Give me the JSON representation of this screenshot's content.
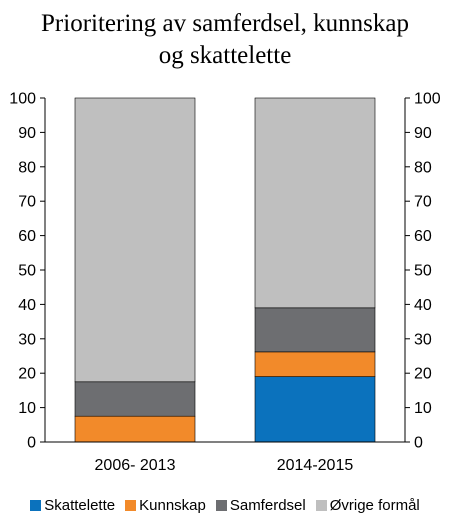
{
  "chart_data": {
    "type": "bar",
    "stacked": true,
    "title_lines": [
      "Prioritering av samferdsel, kunnskap",
      "og skattelette"
    ],
    "categories": [
      "2006- 2013",
      "2014-2015"
    ],
    "series": [
      {
        "name": "Skattelette",
        "color": "#0b72bd",
        "values": [
          0,
          19
        ]
      },
      {
        "name": "Kunnskap",
        "color": "#f28a2a",
        "values": [
          7.5,
          7.2
        ]
      },
      {
        "name": "Samferdsel",
        "color": "#6d6e71",
        "values": [
          10,
          12.8
        ]
      },
      {
        "name": "Øvrige formål",
        "color": "#bfbfbf",
        "values": [
          82.5,
          61
        ]
      }
    ],
    "ylim": [
      0,
      100
    ],
    "yticks": [
      "0",
      "10",
      "20",
      "30",
      "40",
      "50",
      "60",
      "70",
      "80",
      "90",
      "100"
    ],
    "dual_y_axis": true,
    "grid": false,
    "legend_position": "bottom"
  }
}
